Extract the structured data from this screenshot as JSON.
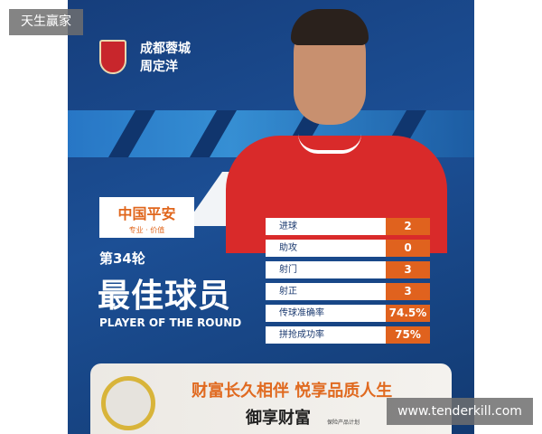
{
  "watermark_top": "天生赢家",
  "watermark_bottom": "www.tenderkill.com",
  "club": "成都蓉城",
  "player": "周定洋",
  "sponsor": {
    "brand": "中国平安",
    "slogan": "专业 · 价值"
  },
  "round": "第34轮",
  "title": "最佳球员",
  "title_en": "PLAYER OF THE ROUND",
  "stats": [
    {
      "label": "进球",
      "value": "2"
    },
    {
      "label": "助攻",
      "value": "0"
    },
    {
      "label": "射门",
      "value": "3"
    },
    {
      "label": "射正",
      "value": "3"
    },
    {
      "label": "传球准确率",
      "value": "74.5%"
    },
    {
      "label": "拼抢成功率",
      "value": "75%"
    }
  ],
  "ad": {
    "headline": "财富长久相伴 悦享品质人生",
    "product": "御享财富",
    "subtitle": "保险产品计划"
  },
  "colors": {
    "background": "#1c4f95",
    "accent": "#e0621e",
    "jersey": "#d92a2a"
  }
}
